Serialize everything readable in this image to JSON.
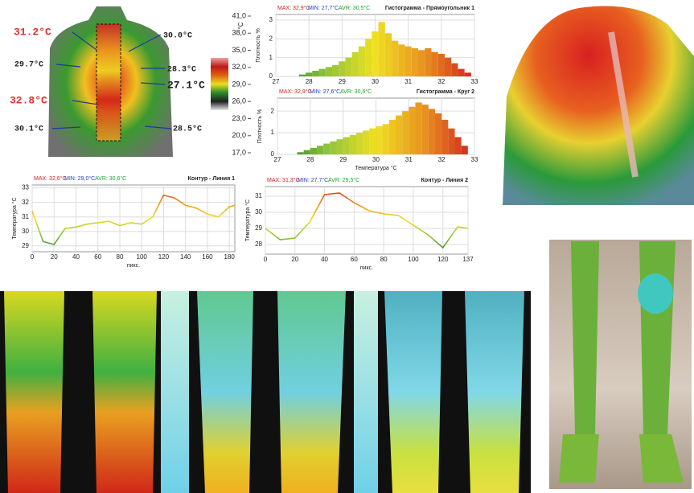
{
  "thermogram": {
    "labels": [
      "31.2°C",
      "30.0°C",
      "29.7°C",
      "28.3°C",
      "27.1°C",
      "32.8°C",
      "30.1°C",
      "28.5°C"
    ]
  },
  "colorbar": {
    "unit": "°C",
    "colors": [
      "#e8e8e8",
      "#202020",
      "#2a8a2a",
      "#e8e020",
      "#e06010",
      "#c01818",
      "#f0a0a0"
    ],
    "ticks": [
      {
        "value": 41,
        "label": "41,0"
      },
      {
        "value": 38,
        "label": "38,0"
      },
      {
        "value": 35,
        "label": "35,0"
      },
      {
        "value": 32,
        "label": "32,0"
      },
      {
        "value": 29,
        "label": "29,0"
      },
      {
        "value": 26,
        "label": "26,0"
      },
      {
        "value": 23,
        "label": "23,0"
      },
      {
        "value": 20,
        "label": "20,0"
      },
      {
        "value": 17,
        "label": "17,0"
      }
    ],
    "lim": [
      17,
      41
    ]
  },
  "chart_data": [
    {
      "type": "histogram",
      "title": "Гистограмма - Прямоугольник 1",
      "stats": [
        "MAX: 32,9°C",
        "MIN: 27,7°C",
        "AVR: 30,5°C"
      ],
      "ylabel": "Плотность %",
      "bins": [
        27.7,
        27.9,
        28.1,
        28.3,
        28.5,
        28.7,
        28.9,
        29.1,
        29.3,
        29.5,
        29.7,
        29.9,
        30.1,
        30.3,
        30.5,
        30.7,
        30.9,
        31.1,
        31.3,
        31.5,
        31.7,
        31.9,
        32.1,
        32.3,
        32.5,
        32.7,
        32.9
      ],
      "values": [
        0.1,
        0.2,
        0.3,
        0.4,
        0.5,
        0.6,
        0.8,
        1.0,
        1.3,
        1.6,
        2.0,
        2.4,
        2.9,
        2.3,
        1.9,
        1.7,
        1.6,
        1.5,
        1.4,
        1.5,
        1.3,
        1.2,
        1.0,
        0.7,
        0.4,
        0.2
      ],
      "colormap": [
        "#1f7a2a",
        "#8cc43c",
        "#f0e020",
        "#e89020",
        "#d02020"
      ],
      "xlim": [
        27,
        33
      ],
      "xticks": [
        27,
        28,
        29,
        30,
        31,
        32,
        33
      ],
      "ylim": [
        0,
        3.3
      ],
      "yticks": [
        0,
        1,
        2,
        3
      ],
      "grid": true
    },
    {
      "type": "histogram",
      "title": "Гистограмма - Круг 2",
      "stats": [
        "MAX: 32,9°C",
        "MIN: 27,6°C",
        "AVR: 30,6°C"
      ],
      "ylabel": "Плотность %",
      "xlabel": "Температура °C",
      "bins": [
        27.6,
        27.8,
        28.0,
        28.2,
        28.4,
        28.6,
        28.8,
        29.0,
        29.2,
        29.4,
        29.6,
        29.8,
        30.0,
        30.2,
        30.4,
        30.6,
        30.8,
        31.0,
        31.2,
        31.4,
        31.6,
        31.8,
        32.0,
        32.2,
        32.4,
        32.6,
        32.8
      ],
      "values": [
        0.1,
        0.2,
        0.3,
        0.4,
        0.5,
        0.6,
        0.7,
        0.8,
        0.9,
        1.0,
        1.1,
        1.2,
        1.3,
        1.4,
        1.6,
        1.8,
        2.0,
        2.2,
        2.4,
        2.3,
        2.1,
        1.9,
        1.6,
        1.2,
        0.8,
        0.4
      ],
      "colormap": [
        "#1f7a2a",
        "#8cc43c",
        "#f0e020",
        "#e89020",
        "#d02020"
      ],
      "xlim": [
        27,
        33
      ],
      "xticks": [
        27,
        28,
        29,
        30,
        31,
        32,
        33
      ],
      "ylim": [
        0,
        2.6
      ],
      "yticks": [
        0,
        1,
        2
      ],
      "grid": true
    },
    {
      "type": "line",
      "title": "Контур - Линия 1",
      "stats": [
        "MAX: 32,6°C",
        "MIN: 29,0°C",
        "AVR: 30,6°C"
      ],
      "ylabel": "Температура °C",
      "xlabel": "пикс.",
      "x": [
        0,
        10,
        20,
        30,
        40,
        50,
        60,
        70,
        80,
        90,
        100,
        110,
        120,
        130,
        140,
        150,
        160,
        170,
        180,
        185
      ],
      "values": [
        31.4,
        29.3,
        29.1,
        30.2,
        30.3,
        30.5,
        30.6,
        30.7,
        30.4,
        30.6,
        30.5,
        31.0,
        32.5,
        32.3,
        31.8,
        31.6,
        31.2,
        31.0,
        31.7,
        31.8
      ],
      "colormap": [
        "#1f7a2a",
        "#8cc43c",
        "#f0e020",
        "#e89020",
        "#d02020"
      ],
      "xlim": [
        0,
        185
      ],
      "xticks": [
        0,
        20,
        40,
        60,
        80,
        100,
        120,
        140,
        160,
        180
      ],
      "ylim": [
        28.6,
        33.2
      ],
      "yticks": [
        29,
        30,
        31,
        32,
        33
      ],
      "grid": true
    },
    {
      "type": "line",
      "title": "Контур - Линия 2",
      "stats": [
        "MAX: 31,3°C",
        "MIN: 27,7°C",
        "AVR: 29,5°C"
      ],
      "ylabel": "Температура °C",
      "xlabel": "пикс.",
      "x": [
        0,
        10,
        20,
        30,
        40,
        50,
        60,
        70,
        80,
        90,
        100,
        110,
        120,
        130,
        137
      ],
      "values": [
        29.0,
        28.3,
        28.4,
        29.4,
        31.1,
        31.2,
        30.6,
        30.1,
        29.9,
        29.8,
        29.2,
        28.6,
        27.8,
        29.1,
        29.0
      ],
      "colormap": [
        "#1f7a2a",
        "#8cc43c",
        "#f0e020",
        "#e89020",
        "#d02020"
      ],
      "xlim": [
        0,
        137
      ],
      "xticks": [
        0,
        20,
        40,
        60,
        80,
        100,
        120,
        137
      ],
      "ylim": [
        27.4,
        31.6
      ],
      "yticks": [
        28,
        29,
        30,
        31
      ],
      "grid": true
    }
  ]
}
